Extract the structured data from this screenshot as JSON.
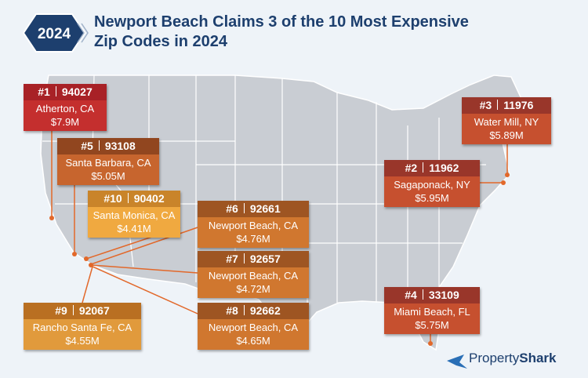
{
  "badge": "2024",
  "title": "Newport Beach Claims 3 of the 10 Most Expensive Zip Codes in 2024",
  "cards": [
    {
      "rank": "#1",
      "zip": "94027",
      "place": "Atherton, CA",
      "price": "$7.9M"
    },
    {
      "rank": "#2",
      "zip": "11962",
      "place": "Sagaponack, NY",
      "price": "$5.95M"
    },
    {
      "rank": "#3",
      "zip": "11976",
      "place": "Water Mill, NY",
      "price": "$5.89M"
    },
    {
      "rank": "#4",
      "zip": "33109",
      "place": "Miami Beach, FL",
      "price": "$5.75M"
    },
    {
      "rank": "#5",
      "zip": "93108",
      "place": "Santa Barbara, CA",
      "price": "$5.05M"
    },
    {
      "rank": "#6",
      "zip": "92661",
      "place": "Newport Beach, CA",
      "price": "$4.76M"
    },
    {
      "rank": "#7",
      "zip": "92657",
      "place": "Newport Beach, CA",
      "price": "$4.72M"
    },
    {
      "rank": "#8",
      "zip": "92662",
      "place": "Newport Beach, CA",
      "price": "$4.65M"
    },
    {
      "rank": "#9",
      "zip": "92067",
      "place": "Rancho Santa Fe, CA",
      "price": "$4.55M"
    },
    {
      "rank": "#10",
      "zip": "90402",
      "place": "Santa Monica, CA",
      "price": "$4.41M"
    }
  ],
  "logo": {
    "first": "Property",
    "second": "Shark"
  }
}
